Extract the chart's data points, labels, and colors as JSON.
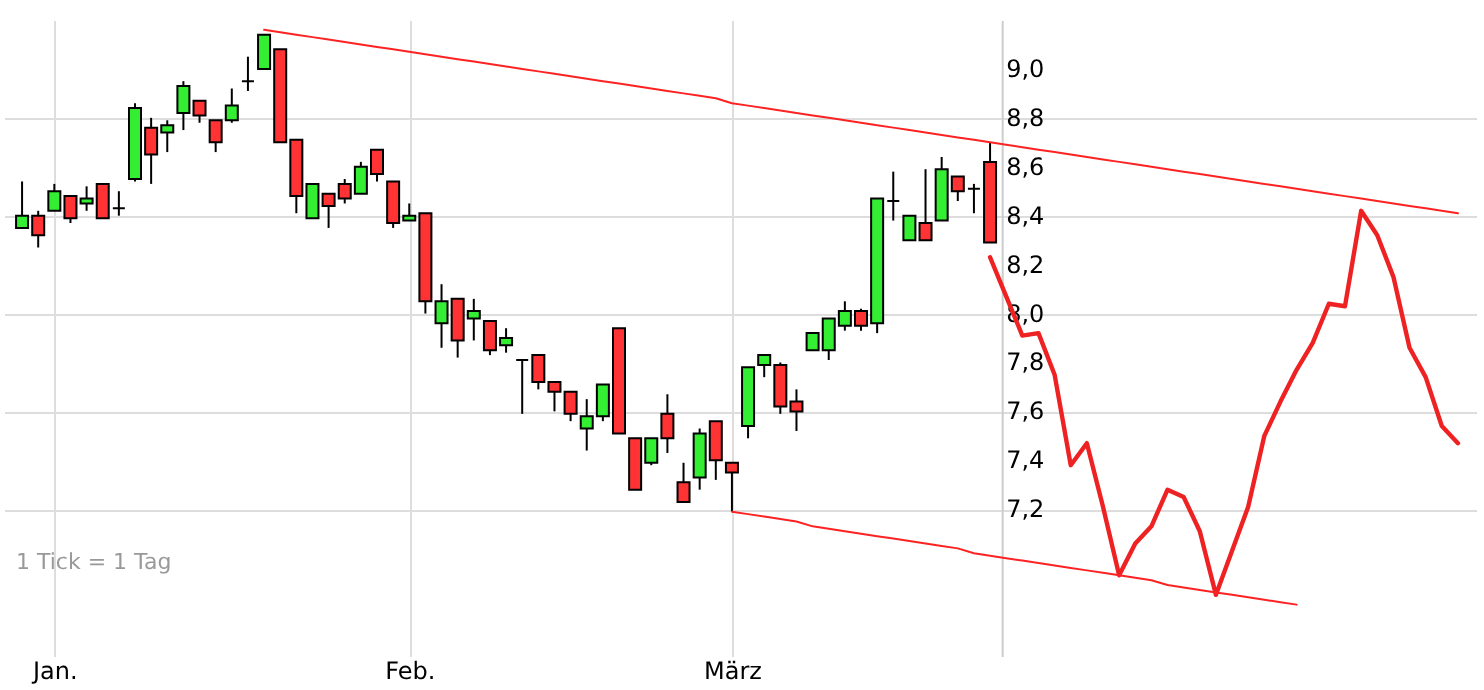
{
  "chart_data": {
    "type": "candlestick",
    "categories": [
      null,
      null,
      "Jan.",
      null,
      null,
      null,
      null,
      null,
      null,
      null,
      null,
      null,
      null,
      null,
      null,
      null,
      null,
      null,
      null,
      null,
      null,
      null,
      null,
      null,
      "Feb.",
      null,
      null,
      null,
      null,
      null,
      null,
      null,
      null,
      null,
      null,
      null,
      null,
      null,
      null,
      null,
      null,
      null,
      null,
      null,
      "März",
      null,
      null,
      null,
      null,
      null,
      null,
      null,
      null,
      null,
      null,
      null,
      null,
      null,
      null,
      null,
      null,
      null,
      null,
      null,
      null,
      null,
      null,
      null,
      null,
      null,
      null,
      null,
      null,
      null,
      null,
      null,
      null,
      null,
      null,
      null,
      null,
      null,
      null,
      null,
      null,
      null,
      null,
      null,
      null,
      null
    ],
    "ohlc": [
      [
        8.35,
        8.54,
        8.35,
        8.4
      ],
      [
        8.4,
        8.42,
        8.27,
        8.32
      ],
      [
        8.42,
        8.53,
        8.42,
        8.5
      ],
      [
        8.48,
        8.48,
        8.37,
        8.39
      ],
      [
        8.45,
        8.52,
        8.42,
        8.47
      ],
      [
        8.53,
        8.53,
        8.39,
        8.39
      ],
      [
        8.43,
        8.5,
        8.4,
        8.43
      ],
      [
        8.55,
        8.86,
        8.54,
        8.84
      ],
      [
        8.76,
        8.8,
        8.53,
        8.65
      ],
      [
        8.74,
        8.79,
        8.66,
        8.77
      ],
      [
        8.82,
        8.95,
        8.75,
        8.93
      ],
      [
        8.87,
        8.87,
        8.78,
        8.81
      ],
      [
        8.79,
        8.79,
        8.66,
        8.7
      ],
      [
        8.79,
        8.92,
        8.78,
        8.85
      ],
      [
        8.95,
        9.05,
        8.91,
        8.95
      ],
      [
        9.0,
        9.14,
        9.0,
        9.14
      ],
      [
        9.08,
        9.08,
        8.7,
        8.7
      ],
      [
        8.71,
        8.71,
        8.41,
        8.48
      ],
      [
        8.39,
        8.53,
        8.39,
        8.53
      ],
      [
        8.49,
        8.49,
        8.35,
        8.44
      ],
      [
        8.53,
        8.55,
        8.45,
        8.47
      ],
      [
        8.49,
        8.62,
        8.49,
        8.6
      ],
      [
        8.67,
        8.67,
        8.54,
        8.57
      ],
      [
        8.54,
        8.54,
        8.35,
        8.37
      ],
      [
        8.38,
        8.45,
        8.38,
        8.4
      ],
      [
        8.41,
        8.41,
        8.0,
        8.05
      ],
      [
        7.96,
        8.12,
        7.86,
        8.05
      ],
      [
        8.06,
        8.06,
        7.82,
        7.89
      ],
      [
        7.98,
        8.06,
        7.89,
        8.01
      ],
      [
        7.97,
        7.97,
        7.83,
        7.85
      ],
      [
        7.87,
        7.94,
        7.84,
        7.9
      ],
      [
        7.81,
        7.81,
        7.59,
        7.81
      ],
      [
        7.83,
        7.83,
        7.69,
        7.72
      ],
      [
        7.72,
        7.72,
        7.6,
        7.68
      ],
      [
        7.68,
        7.68,
        7.56,
        7.59
      ],
      [
        7.53,
        7.65,
        7.44,
        7.58
      ],
      [
        7.58,
        7.71,
        7.56,
        7.71
      ],
      [
        7.94,
        7.94,
        7.51,
        7.51
      ],
      [
        7.49,
        7.49,
        7.28,
        7.28
      ],
      [
        7.39,
        7.49,
        7.38,
        7.49
      ],
      [
        7.59,
        7.67,
        7.43,
        7.49
      ],
      [
        7.31,
        7.39,
        7.23,
        7.23
      ],
      [
        7.33,
        7.53,
        7.28,
        7.51
      ],
      [
        7.56,
        7.56,
        7.32,
        7.4
      ],
      [
        7.39,
        7.39,
        7.19,
        7.35
      ],
      [
        7.54,
        7.78,
        7.49,
        7.78
      ],
      [
        7.79,
        7.83,
        7.74,
        7.83
      ],
      [
        7.79,
        7.8,
        7.59,
        7.62
      ],
      [
        7.64,
        7.69,
        7.52,
        7.6
      ],
      [
        7.85,
        7.92,
        7.85,
        7.92
      ],
      [
        7.85,
        7.98,
        7.81,
        7.98
      ],
      [
        7.95,
        8.05,
        7.93,
        8.01
      ],
      [
        8.01,
        8.02,
        7.93,
        7.95
      ],
      [
        7.96,
        8.47,
        7.92,
        8.47
      ],
      [
        8.46,
        8.58,
        8.38,
        8.46
      ],
      [
        8.3,
        8.4,
        8.3,
        8.4
      ],
      [
        8.37,
        8.59,
        8.3,
        8.3
      ],
      [
        8.38,
        8.64,
        8.38,
        8.59
      ],
      [
        8.56,
        8.56,
        8.46,
        8.5
      ],
      [
        8.51,
        8.53,
        8.41,
        8.51
      ],
      [
        8.62,
        8.7,
        8.29,
        8.29
      ],
      null,
      null,
      null,
      null,
      null,
      null,
      null,
      null,
      null,
      null,
      null,
      null,
      null,
      null,
      null,
      null,
      null,
      null,
      null,
      null,
      null,
      null,
      null,
      null,
      null,
      null,
      null,
      null,
      null
    ],
    "series": [
      {
        "type": "line",
        "color": "#ee2222",
        "values": [
          null,
          null,
          null,
          null,
          null,
          null,
          null,
          null,
          null,
          null,
          null,
          null,
          null,
          null,
          null,
          null,
          null,
          null,
          null,
          null,
          null,
          null,
          null,
          null,
          null,
          null,
          null,
          null,
          null,
          null,
          null,
          null,
          null,
          null,
          null,
          null,
          null,
          null,
          null,
          null,
          null,
          null,
          null,
          null,
          null,
          null,
          null,
          null,
          null,
          null,
          null,
          null,
          null,
          null,
          null,
          null,
          null,
          null,
          null,
          null,
          8.23,
          8.07,
          7.91,
          7.92,
          7.75,
          7.38,
          7.47,
          7.21,
          6.93,
          7.06,
          7.13,
          7.28,
          7.25,
          7.11,
          6.85,
          7.03,
          7.21,
          7.5,
          7.64,
          7.77,
          7.88,
          8.04,
          8.03,
          8.42,
          8.32,
          8.15,
          7.86,
          7.74,
          7.54,
          7.47
        ]
      },
      {
        "type": "line",
        "color": "#ff2222",
        "values": [
          null,
          null,
          null,
          null,
          null,
          null,
          null,
          null,
          null,
          null,
          null,
          null,
          null,
          null,
          null,
          9.16,
          9.15,
          9.14,
          9.13,
          9.12,
          9.11,
          9.1,
          9.09,
          9.08,
          9.07,
          9.06,
          9.05,
          9.04,
          9.03,
          9.02,
          9.01,
          9.0,
          8.99,
          8.98,
          8.97,
          8.96,
          8.95,
          8.94,
          8.93,
          8.92,
          8.91,
          8.9,
          8.89,
          8.88,
          8.86,
          8.85,
          8.84,
          8.83,
          8.82,
          8.81,
          8.8,
          8.79,
          8.78,
          8.77,
          8.76,
          8.75,
          8.74,
          8.73,
          8.72,
          8.71,
          8.7,
          8.69,
          8.68,
          8.67,
          8.66,
          8.65,
          8.64,
          8.63,
          8.62,
          8.61,
          8.6,
          8.59,
          8.58,
          8.57,
          8.56,
          8.55,
          8.54,
          8.53,
          8.52,
          8.51,
          8.5,
          8.49,
          8.48,
          8.47,
          8.46,
          8.45,
          8.44,
          8.43,
          8.42,
          8.41
        ]
      },
      {
        "type": "line",
        "color": "#ff2222",
        "values": [
          null,
          null,
          null,
          null,
          null,
          null,
          null,
          null,
          null,
          null,
          null,
          null,
          null,
          null,
          null,
          null,
          null,
          null,
          null,
          null,
          null,
          null,
          null,
          null,
          null,
          null,
          null,
          null,
          null,
          null,
          null,
          null,
          null,
          null,
          null,
          null,
          null,
          null,
          null,
          null,
          null,
          null,
          null,
          null,
          7.19,
          7.18,
          7.17,
          7.16,
          7.15,
          7.13,
          7.12,
          7.11,
          7.1,
          7.09,
          7.08,
          7.07,
          7.06,
          7.05,
          7.04,
          7.02,
          7.01,
          7.0,
          6.99,
          6.98,
          6.97,
          6.96,
          6.95,
          6.94,
          6.93,
          6.92,
          6.91,
          6.89,
          6.88,
          6.87,
          6.86,
          6.85,
          6.84,
          6.83,
          6.82,
          6.81,
          null,
          null,
          null,
          null,
          null,
          null,
          null,
          null,
          null,
          null
        ]
      }
    ],
    "ylim": [
      6.6,
      9.2
    ],
    "yticks": [
      {
        "value": 7.2,
        "label": "7,2"
      },
      {
        "value": 7.4,
        "label": "7,4"
      },
      {
        "value": 7.6,
        "label": "7,6"
      },
      {
        "value": 7.8,
        "label": "7,8"
      },
      {
        "value": 8.0,
        "label": "8,0"
      },
      {
        "value": 8.2,
        "label": "8,2"
      },
      {
        "value": 8.4,
        "label": "8,4"
      },
      {
        "value": 8.6,
        "label": "8,6"
      },
      {
        "value": 8.8,
        "label": "8,8"
      },
      {
        "value": 9.0,
        "label": "9,0"
      }
    ],
    "grid": true,
    "annotations": [
      "1 Tick = 1 Tag"
    ]
  }
}
